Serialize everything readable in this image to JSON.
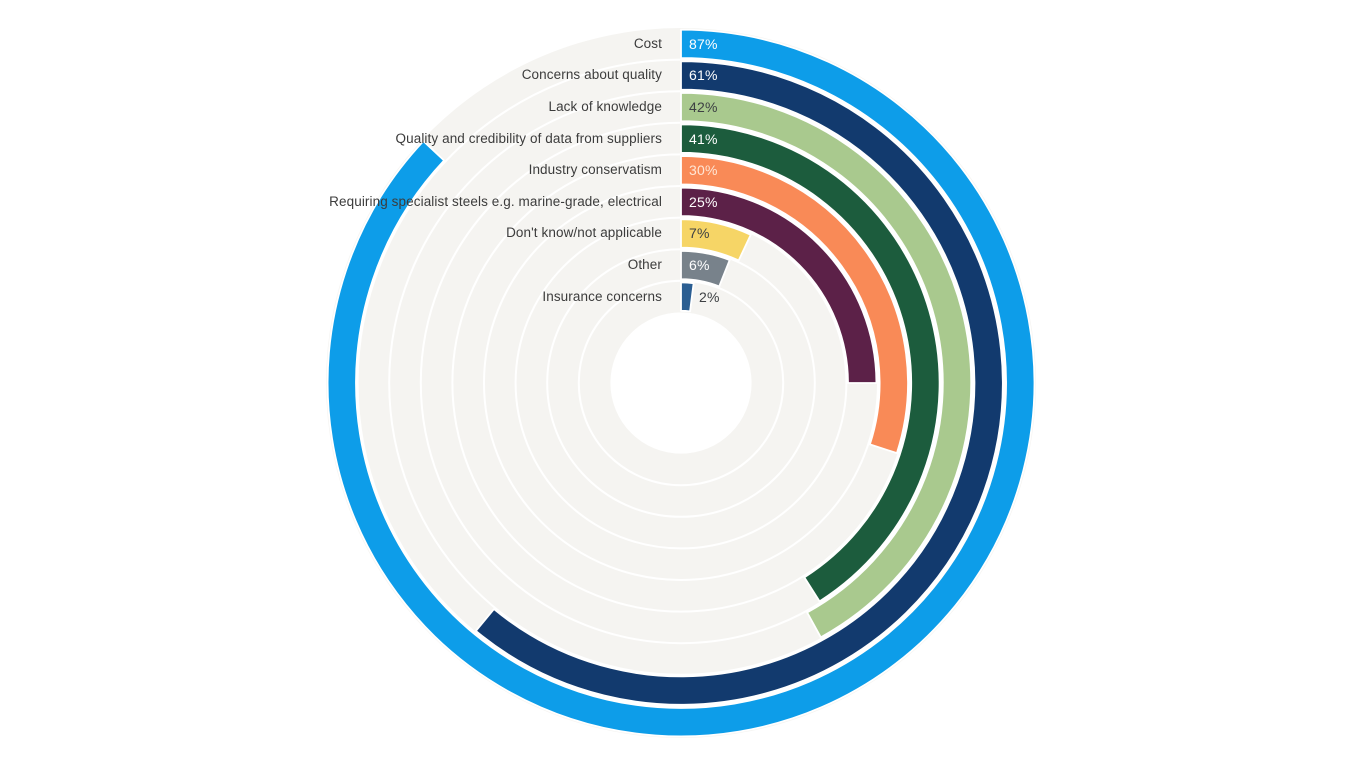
{
  "chart_data": {
    "type": "bar",
    "subtype": "radial-bar",
    "title": "",
    "xlabel": "",
    "ylabel": "",
    "value_unit": "%",
    "value_range": [
      0,
      100
    ],
    "start_position": "12-oclock",
    "direction": "clockwise",
    "ring_order": "outermost-to-innermost",
    "grid": "on",
    "grid_color": "#ffffff",
    "track_color": "#f5f4f1",
    "hole_color": "#ffffff",
    "categories": [
      "Cost",
      "Concerns about quality",
      "Lack of knowledge",
      "Quality and credibility of data from suppliers",
      "Industry conservatism",
      "Requiring specialist steels e.g. marine-grade, electrical",
      "Don't know/not applicable",
      "Other",
      "Insurance concerns"
    ],
    "values": [
      87,
      61,
      42,
      41,
      30,
      25,
      7,
      6,
      2
    ],
    "series": [
      {
        "label": "Cost",
        "value": 87,
        "display": "87%",
        "color": "#0d9de9",
        "value_label_color": "#ffffff",
        "value_label_outside": false
      },
      {
        "label": "Concerns about quality",
        "value": 61,
        "display": "61%",
        "color": "#123a6e",
        "value_label_color": "#ffffff",
        "value_label_outside": false
      },
      {
        "label": "Lack of knowledge",
        "value": 42,
        "display": "42%",
        "color": "#a9c98e",
        "value_label_color": "#3d4043",
        "value_label_outside": false
      },
      {
        "label": "Quality and credibility of data from suppliers",
        "value": 41,
        "display": "41%",
        "color": "#1c5c3d",
        "value_label_color": "#ffffff",
        "value_label_outside": false
      },
      {
        "label": "Industry conservatism",
        "value": 30,
        "display": "30%",
        "color": "#f98a57",
        "value_label_color": "#ffe6d5",
        "value_label_outside": false
      },
      {
        "label": "Requiring specialist steels e.g. marine-grade, electrical",
        "value": 25,
        "display": "25%",
        "color": "#5c2148",
        "value_label_color": "#ffffff",
        "value_label_outside": false
      },
      {
        "label": "Don't know/not applicable",
        "value": 7,
        "display": "7%",
        "color": "#f6d566",
        "value_label_color": "#3d4043",
        "value_label_outside": false
      },
      {
        "label": "Other",
        "value": 6,
        "display": "6%",
        "color": "#78828b",
        "value_label_color": "#ffffff",
        "value_label_outside": false
      },
      {
        "label": "Insurance concerns",
        "value": 2,
        "display": "2%",
        "color": "#2b5e92",
        "value_label_color": "#3d4043",
        "value_label_outside": true
      }
    ]
  }
}
